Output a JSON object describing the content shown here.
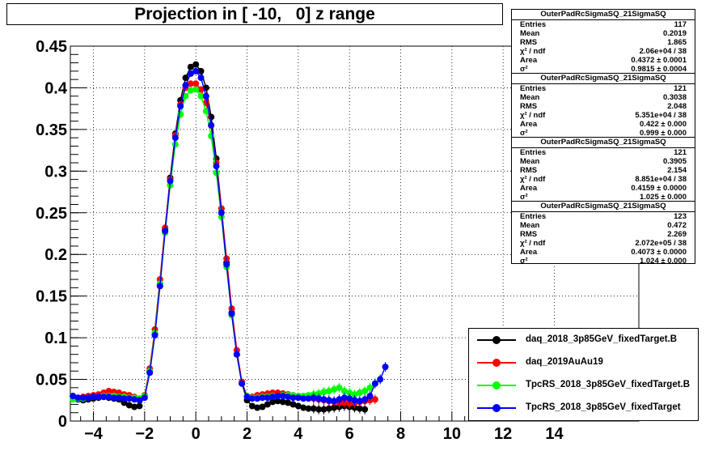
{
  "title": "Projection in [ -10,   0] z range",
  "chart_data": {
    "type": "scatter",
    "xlim": [
      -4.9,
      17.3
    ],
    "ylim": [
      0,
      0.45
    ],
    "x_ticks": [
      -4,
      -2,
      0,
      2,
      4,
      6,
      8,
      10,
      12,
      14
    ],
    "y_ticks": [
      0,
      0.05,
      0.1,
      0.15,
      0.2,
      0.25,
      0.3,
      0.35,
      0.4,
      0.45
    ],
    "x_tick_labels": [
      "−4",
      "−2",
      "0",
      "2",
      "4",
      "6",
      "8",
      "10",
      "12",
      "14"
    ],
    "y_tick_labels": [
      "0",
      "0.05",
      "0.1",
      "0.15",
      "0.2",
      "0.25",
      "0.3",
      "0.35",
      "0.4",
      "0.45"
    ],
    "grid": true,
    "legend_position": "bottom-right",
    "series": [
      {
        "name": "daq_2018_3p85GeV_fixedTarget.B",
        "color": "#000000",
        "x": [
          -4.8,
          -4.6,
          -4.4,
          -4.2,
          -4.0,
          -3.8,
          -3.6,
          -3.4,
          -3.2,
          -3.0,
          -2.8,
          -2.6,
          -2.4,
          -2.2,
          -2.0,
          -1.8,
          -1.6,
          -1.4,
          -1.2,
          -1.0,
          -0.8,
          -0.6,
          -0.4,
          -0.2,
          0.0,
          0.2,
          0.4,
          0.6,
          0.8,
          1.0,
          1.2,
          1.4,
          1.6,
          1.8,
          2.0,
          2.2,
          2.4,
          2.6,
          2.8,
          3.0,
          3.2,
          3.4,
          3.6,
          3.8,
          4.0,
          4.2,
          4.4,
          4.6,
          4.8,
          5.0,
          5.2,
          5.4,
          5.6,
          5.8,
          6.0,
          6.2,
          6.4,
          6.6
        ],
        "y": [
          0.03,
          0.026,
          0.025,
          0.026,
          0.027,
          0.028,
          0.029,
          0.028,
          0.027,
          0.026,
          0.022,
          0.019,
          0.017,
          0.018,
          0.03,
          0.06,
          0.105,
          0.165,
          0.23,
          0.292,
          0.345,
          0.385,
          0.412,
          0.425,
          0.428,
          0.42,
          0.4,
          0.365,
          0.315,
          0.255,
          0.19,
          0.13,
          0.08,
          0.045,
          0.025,
          0.018,
          0.016,
          0.017,
          0.02,
          0.023,
          0.024,
          0.023,
          0.022,
          0.02,
          0.018,
          0.016,
          0.015,
          0.015,
          0.014,
          0.014,
          0.015,
          0.016,
          0.017,
          0.018,
          0.017,
          0.016,
          0.015,
          0.014
        ]
      },
      {
        "name": "daq_2019AuAu19",
        "color": "#ff0000",
        "x": [
          -4.8,
          -4.6,
          -4.4,
          -4.2,
          -4.0,
          -3.8,
          -3.6,
          -3.4,
          -3.2,
          -3.0,
          -2.8,
          -2.6,
          -2.4,
          -2.2,
          -2.0,
          -1.8,
          -1.6,
          -1.4,
          -1.2,
          -1.0,
          -0.8,
          -0.6,
          -0.4,
          -0.2,
          0.0,
          0.2,
          0.4,
          0.6,
          0.8,
          1.0,
          1.2,
          1.4,
          1.6,
          1.8,
          2.0,
          2.2,
          2.4,
          2.6,
          2.8,
          3.0,
          3.2,
          3.4,
          3.6,
          3.8,
          4.0,
          4.2,
          4.4,
          4.6,
          4.8,
          5.0,
          5.2,
          5.4,
          5.6,
          5.8,
          6.0,
          6.2,
          6.4,
          6.6,
          6.8,
          7.0
        ],
        "y": [
          0.027,
          0.028,
          0.029,
          0.03,
          0.031,
          0.032,
          0.034,
          0.036,
          0.035,
          0.034,
          0.032,
          0.031,
          0.029,
          0.027,
          0.031,
          0.063,
          0.11,
          0.17,
          0.232,
          0.29,
          0.343,
          0.38,
          0.4,
          0.405,
          0.405,
          0.398,
          0.382,
          0.355,
          0.31,
          0.255,
          0.195,
          0.135,
          0.085,
          0.047,
          0.03,
          0.029,
          0.031,
          0.032,
          0.033,
          0.034,
          0.034,
          0.033,
          0.032,
          0.031,
          0.03,
          0.029,
          0.028,
          0.027,
          0.026,
          0.025,
          0.024,
          0.023,
          0.022,
          0.022,
          0.021,
          0.022,
          0.023,
          0.024,
          0.025,
          0.026
        ]
      },
      {
        "name": "TpcRS_2018_3p85GeV_fixedTarget.B",
        "color": "#00ff00",
        "x": [
          -4.8,
          -4.6,
          -4.4,
          -4.2,
          -4.0,
          -3.8,
          -3.6,
          -3.4,
          -3.2,
          -3.0,
          -2.8,
          -2.6,
          -2.4,
          -2.2,
          -2.0,
          -1.8,
          -1.6,
          -1.4,
          -1.2,
          -1.0,
          -0.8,
          -0.6,
          -0.4,
          -0.2,
          0.0,
          0.2,
          0.4,
          0.6,
          0.8,
          1.0,
          1.2,
          1.4,
          1.6,
          1.8,
          2.0,
          2.2,
          2.4,
          2.6,
          2.8,
          3.0,
          3.2,
          3.4,
          3.6,
          3.8,
          4.0,
          4.2,
          4.4,
          4.6,
          4.8,
          5.0,
          5.2,
          5.4,
          5.6,
          5.8,
          6.0,
          6.2,
          6.4,
          6.6,
          6.8,
          7.0,
          7.2
        ],
        "y": [
          0.026,
          0.027,
          0.027,
          0.028,
          0.029,
          0.029,
          0.03,
          0.03,
          0.03,
          0.029,
          0.029,
          0.028,
          0.028,
          0.027,
          0.03,
          0.06,
          0.106,
          0.165,
          0.226,
          0.283,
          0.332,
          0.368,
          0.39,
          0.397,
          0.398,
          0.39,
          0.372,
          0.342,
          0.298,
          0.245,
          0.185,
          0.127,
          0.08,
          0.045,
          0.03,
          0.028,
          0.028,
          0.029,
          0.029,
          0.03,
          0.03,
          0.031,
          0.031,
          0.031,
          0.03,
          0.03,
          0.031,
          0.032,
          0.033,
          0.035,
          0.036,
          0.038,
          0.04,
          0.036,
          0.034,
          0.032,
          0.034,
          0.036,
          0.04,
          0.045,
          0.05
        ]
      },
      {
        "name": "TpcRS_2018_3p85GeV_fixedTarget",
        "color": "#0000ff",
        "x": [
          -4.8,
          -4.6,
          -4.4,
          -4.2,
          -4.0,
          -3.8,
          -3.6,
          -3.4,
          -3.2,
          -3.0,
          -2.8,
          -2.6,
          -2.4,
          -2.2,
          -2.0,
          -1.8,
          -1.6,
          -1.4,
          -1.2,
          -1.0,
          -0.8,
          -0.6,
          -0.4,
          -0.2,
          0.0,
          0.2,
          0.4,
          0.6,
          0.8,
          1.0,
          1.2,
          1.4,
          1.6,
          1.8,
          2.0,
          2.2,
          2.4,
          2.6,
          2.8,
          3.0,
          3.2,
          3.4,
          3.6,
          3.8,
          4.0,
          4.2,
          4.4,
          4.6,
          4.8,
          5.0,
          5.2,
          5.4,
          5.6,
          5.8,
          6.0,
          6.2,
          6.4,
          6.6,
          6.8,
          7.0,
          7.2,
          7.4
        ],
        "y": [
          0.03,
          0.028,
          0.028,
          0.028,
          0.029,
          0.029,
          0.029,
          0.029,
          0.028,
          0.028,
          0.027,
          0.027,
          0.026,
          0.025,
          0.028,
          0.058,
          0.103,
          0.162,
          0.228,
          0.288,
          0.34,
          0.378,
          0.403,
          0.417,
          0.42,
          0.412,
          0.39,
          0.355,
          0.306,
          0.25,
          0.188,
          0.129,
          0.08,
          0.045,
          0.029,
          0.027,
          0.027,
          0.028,
          0.028,
          0.029,
          0.03,
          0.03,
          0.029,
          0.028,
          0.028,
          0.027,
          0.027,
          0.028,
          0.027,
          0.026,
          0.025,
          0.024,
          0.026,
          0.028,
          0.027,
          0.025,
          0.024,
          0.026,
          0.03,
          0.045,
          0.05,
          0.065
        ]
      }
    ]
  },
  "stats_boxes": [
    {
      "header": "OuterPadRcSigmaSQ_21SigmaSQ",
      "rows": [
        {
          "label": "Entries",
          "value": "117"
        },
        {
          "label": "Mean",
          "value": "0.2019"
        },
        {
          "label": "RMS",
          "value": "1.865"
        },
        {
          "label": "χ² / ndf",
          "value": "2.06e+04 / 38"
        },
        {
          "label": "Area",
          "value": "0.4372 ± 0.0001"
        },
        {
          "label": "σ²",
          "value": "0.9815 ± 0.0004"
        }
      ]
    },
    {
      "header": "OuterPadRcSigmaSQ_21SigmaSQ",
      "rows": [
        {
          "label": "Entries",
          "value": "121"
        },
        {
          "label": "Mean",
          "value": "0.3038"
        },
        {
          "label": "RMS",
          "value": "2.048"
        },
        {
          "label": "χ² / ndf",
          "value": "5.351e+04 / 38"
        },
        {
          "label": "Area",
          "value": "0.422 ± 0.000"
        },
        {
          "label": "σ²",
          "value": "0.999 ± 0.000"
        }
      ]
    },
    {
      "header": "OuterPadRcSigmaSQ_21SigmaSQ",
      "rows": [
        {
          "label": "Entries",
          "value": "121"
        },
        {
          "label": "Mean",
          "value": "0.3905"
        },
        {
          "label": "RMS",
          "value": "2.154"
        },
        {
          "label": "χ² / ndf",
          "value": "8.851e+04 / 38"
        },
        {
          "label": "Area",
          "value": "0.4159 ± 0.0000"
        },
        {
          "label": "σ²",
          "value": "1.025 ± 0.000"
        }
      ]
    },
    {
      "header": "OuterPadRcSigmaSQ_21SigmaSQ",
      "rows": [
        {
          "label": "Entries",
          "value": "123"
        },
        {
          "label": "Mean",
          "value": "0.472"
        },
        {
          "label": "RMS",
          "value": "2.269"
        },
        {
          "label": "χ² / ndf",
          "value": "2.072e+05 / 38"
        },
        {
          "label": "Area",
          "value": "0.4073 ± 0.0000"
        },
        {
          "label": "σ²",
          "value": "1.024 ± 0.000"
        }
      ]
    }
  ]
}
